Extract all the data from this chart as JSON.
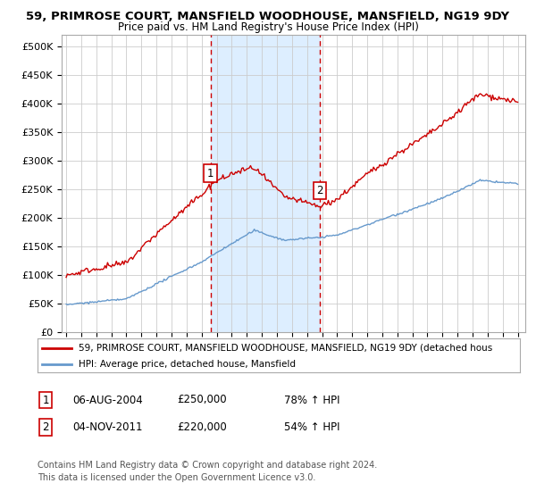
{
  "title": "59, PRIMROSE COURT, MANSFIELD WOODHOUSE, MANSFIELD, NG19 9DY",
  "subtitle": "Price paid vs. HM Land Registry's House Price Index (HPI)",
  "legend_line1": "59, PRIMROSE COURT, MANSFIELD WOODHOUSE, MANSFIELD, NG19 9DY (detached hous",
  "legend_line2": "HPI: Average price, detached house, Mansfield",
  "annotation1_date": "06-AUG-2004",
  "annotation1_price": "£250,000",
  "annotation1_hpi": "78% ↑ HPI",
  "annotation2_date": "04-NOV-2011",
  "annotation2_price": "£220,000",
  "annotation2_hpi": "54% ↑ HPI",
  "footer1": "Contains HM Land Registry data © Crown copyright and database right 2024.",
  "footer2": "This data is licensed under the Open Government Licence v3.0.",
  "red_color": "#cc0000",
  "blue_color": "#6699cc",
  "shade_color": "#ddeeff",
  "background_color": "#ffffff",
  "grid_color": "#cccccc",
  "sale1_year": 2004.583,
  "sale1_val": 250000,
  "sale2_year": 2011.833,
  "sale2_val": 220000,
  "ylim": [
    0,
    520000
  ],
  "xlim_min": 1994.7,
  "xlim_max": 2025.5
}
